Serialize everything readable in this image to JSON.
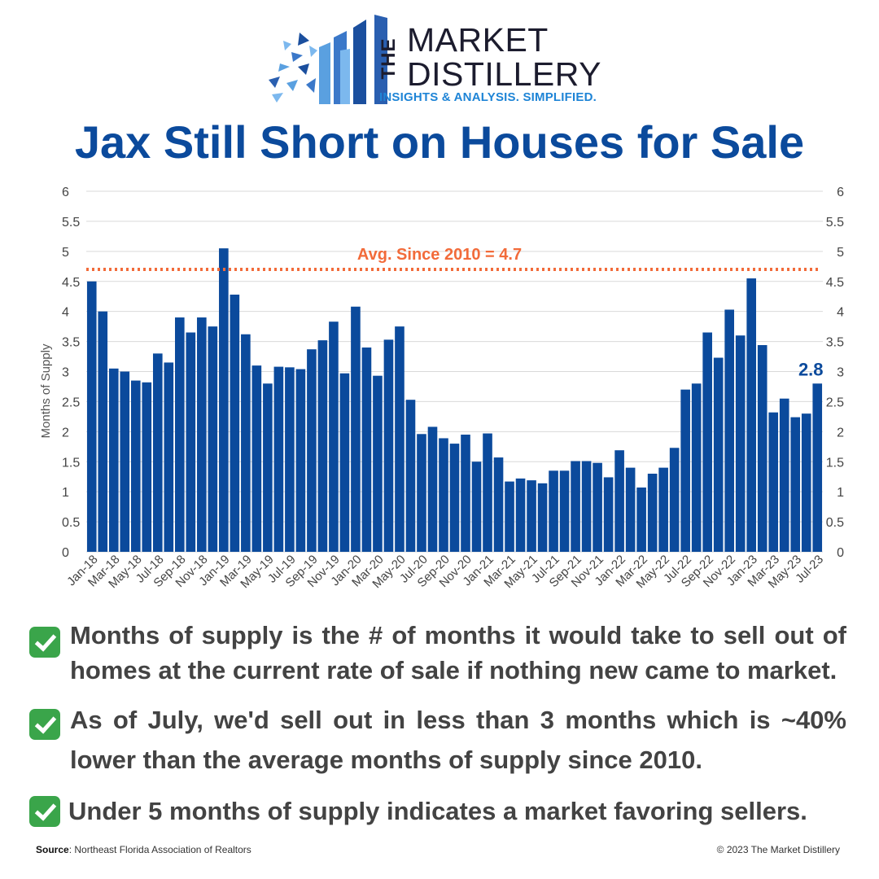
{
  "brand": {
    "the": "THE",
    "line1": "MARKET",
    "line2": "DISTILLERY",
    "tagline": "INSIGHTS & ANALYSIS. SIMPLIFIED."
  },
  "colors": {
    "title": "#0b4a9c",
    "bar": "#0b4a9c",
    "average_line": "#f26b3a",
    "callout": "#0b4a9c",
    "check": "#3aa54a",
    "text": "#434343"
  },
  "chart_data": {
    "type": "bar",
    "title": "Jax Still Short on Houses for Sale",
    "ylabel": "Months of Supply",
    "ylim": [
      0,
      6
    ],
    "yticks": [
      "0",
      "0.5",
      "1",
      "1.5",
      "2",
      "2.5",
      "3",
      "3.5",
      "4",
      "4.5",
      "5",
      "5.5",
      "6"
    ],
    "grid": true,
    "dual_y_axis": true,
    "categories": [
      "Jan-18",
      "Feb-18",
      "Mar-18",
      "Apr-18",
      "May-18",
      "Jun-18",
      "Jul-18",
      "Aug-18",
      "Sep-18",
      "Oct-18",
      "Nov-18",
      "Dec-18",
      "Jan-19",
      "Feb-19",
      "Mar-19",
      "Apr-19",
      "May-19",
      "Jun-19",
      "Jul-19",
      "Aug-19",
      "Sep-19",
      "Oct-19",
      "Nov-19",
      "Dec-19",
      "Jan-20",
      "Feb-20",
      "Mar-20",
      "Apr-20",
      "May-20",
      "Jun-20",
      "Jul-20",
      "Aug-20",
      "Sep-20",
      "Oct-20",
      "Nov-20",
      "Dec-20",
      "Jan-21",
      "Feb-21",
      "Mar-21",
      "Apr-21",
      "May-21",
      "Jun-21",
      "Jul-21",
      "Aug-21",
      "Sep-21",
      "Oct-21",
      "Nov-21",
      "Dec-21",
      "Jan-22",
      "Feb-22",
      "Mar-22",
      "Apr-22",
      "May-22",
      "Jun-22",
      "Jul-22",
      "Aug-22",
      "Sep-22",
      "Oct-22",
      "Nov-22",
      "Dec-22",
      "Jan-23",
      "Feb-23",
      "Mar-23",
      "Apr-23",
      "May-23",
      "Jun-23",
      "Jul-23"
    ],
    "xtick_labels": [
      "Jan-18",
      "Mar-18",
      "May-18",
      "Jul-18",
      "Sep-18",
      "Nov-18",
      "Jan-19",
      "Mar-19",
      "May-19",
      "Jul-19",
      "Sep-19",
      "Nov-19",
      "Jan-20",
      "Mar-20",
      "May-20",
      "Jul-20",
      "Sep-20",
      "Nov-20",
      "Jan-21",
      "Mar-21",
      "May-21",
      "Jul-21",
      "Sep-21",
      "Nov-21",
      "Jan-22",
      "Mar-22",
      "May-22",
      "Jul-22",
      "Sep-22",
      "Nov-22",
      "Jan-23",
      "Mar-23",
      "May-23",
      "Jul-23"
    ],
    "values": [
      4.5,
      4.0,
      3.05,
      3.0,
      2.85,
      2.82,
      3.3,
      3.15,
      3.9,
      3.65,
      3.9,
      3.75,
      5.05,
      4.28,
      3.62,
      3.1,
      2.8,
      3.08,
      3.07,
      3.04,
      3.37,
      3.52,
      3.83,
      2.97,
      4.08,
      3.4,
      2.93,
      3.53,
      3.75,
      2.53,
      1.96,
      2.08,
      1.89,
      1.8,
      1.95,
      1.5,
      1.97,
      1.57,
      1.17,
      1.22,
      1.19,
      1.14,
      1.35,
      1.35,
      1.51,
      1.51,
      1.48,
      1.24,
      1.69,
      1.4,
      1.07,
      1.3,
      1.4,
      1.73,
      2.7,
      2.8,
      3.65,
      3.23,
      4.03,
      3.6,
      4.55,
      3.44,
      2.32,
      2.55,
      2.24,
      2.3,
      2.8
    ],
    "average": {
      "value": 4.7,
      "label": "Avg. Since 2010 = 4.7"
    },
    "callout": {
      "category": "Jul-23",
      "label": "2.8"
    }
  },
  "bullets": [
    {
      "lines": [
        "Months of supply is the # of months it would take to sell out of",
        "homes at the current rate of sale if nothing new came to market."
      ]
    },
    {
      "lines": [
        "As of July, we'd sell out in less than 3 months which is ~40%",
        "lower than the average months of supply since 2010."
      ]
    },
    {
      "lines": [
        "Under 5 months of supply indicates a market favoring sellers."
      ]
    }
  ],
  "footer": {
    "source_label": "Source",
    "source_text": ": Northeast Florida Association of Realtors",
    "copyright": "© 2023 The Market Distillery"
  }
}
